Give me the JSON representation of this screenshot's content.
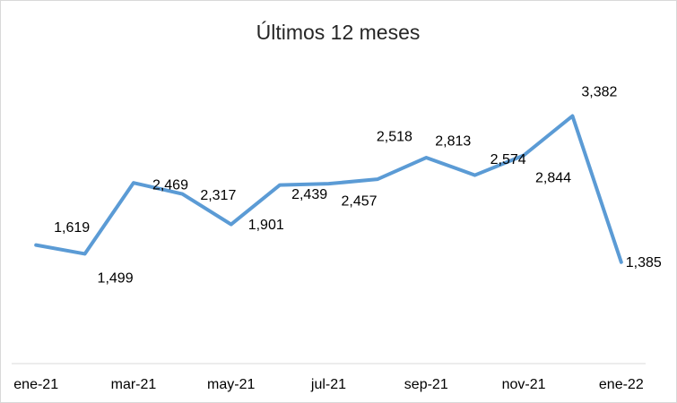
{
  "chart_data": {
    "type": "line",
    "title": "Últimos 12 meses",
    "categories": [
      "ene-21",
      null,
      "mar-21",
      null,
      "may-21",
      null,
      "jul-21",
      null,
      "sep-21",
      null,
      "nov-21",
      null,
      "ene-22"
    ],
    "series": [
      {
        "name": "Últimos 12 meses",
        "color": "#5b9bd5",
        "values": [
          1619,
          1499,
          2469,
          2317,
          1901,
          2439,
          2457,
          2518,
          2813,
          2574,
          2844,
          3382,
          1385
        ],
        "value_labels": [
          "1,619",
          "1,499",
          "2,469",
          "2,317",
          "1,901",
          "2,439",
          "2,457",
          "2,518",
          "2,813",
          "2,574",
          "2,844",
          "3,382",
          "1,385"
        ]
      }
    ],
    "ylim": [
      0,
      4000
    ],
    "grid": false,
    "legend": false
  }
}
